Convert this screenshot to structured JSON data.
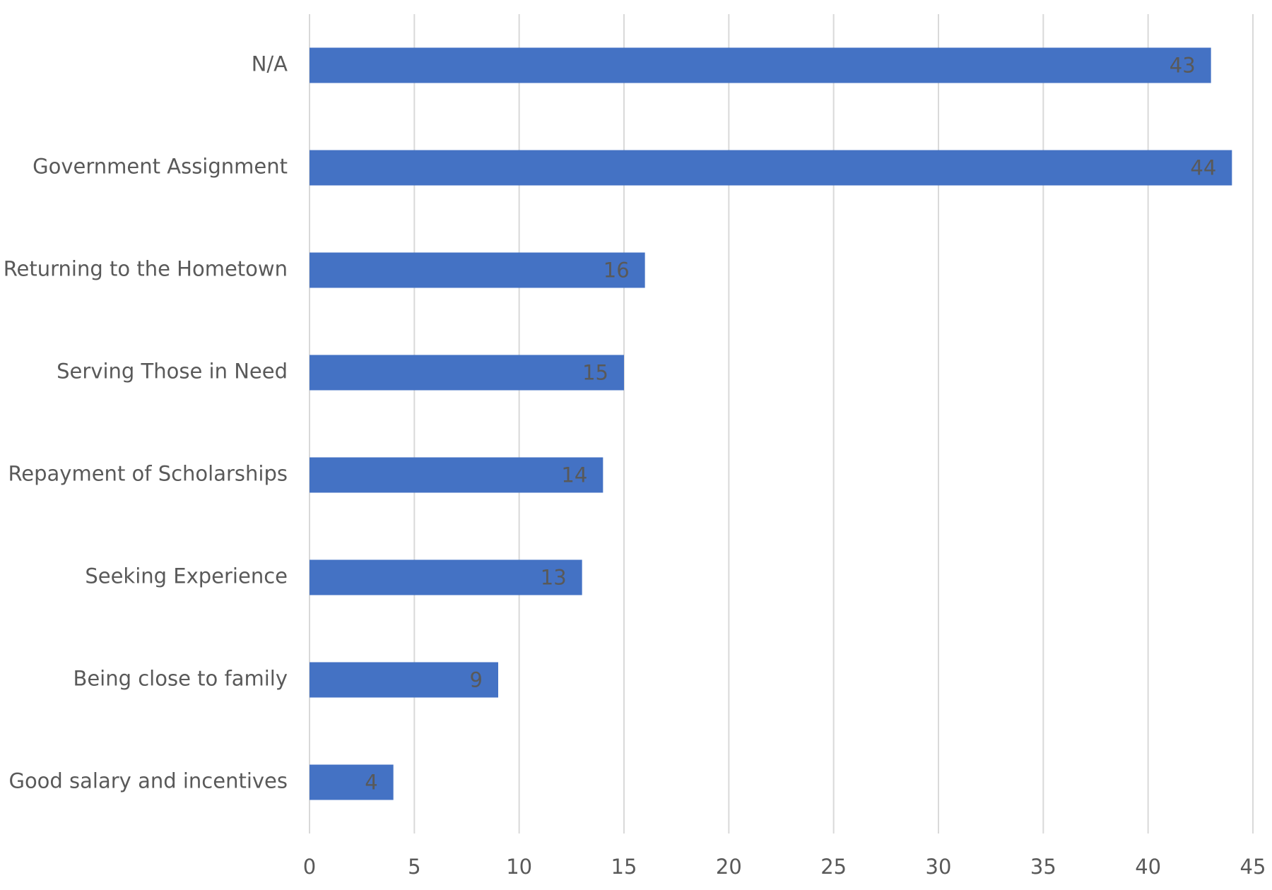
{
  "chart_data": {
    "type": "bar",
    "orientation": "horizontal",
    "categories": [
      "N/A",
      "Government Assignment",
      "Returning to the Hometown",
      "Serving Those in Need",
      "Repayment of Scholarships",
      "Seeking Experience",
      "Being close to family",
      "Good salary and incentives"
    ],
    "values": [
      43,
      44,
      16,
      15,
      14,
      13,
      9,
      4
    ],
    "data_labels": [
      "43",
      "44",
      "16",
      "15",
      "14",
      "13",
      "9",
      "4"
    ],
    "xlim": [
      0,
      45
    ],
    "xticks": [
      0,
      5,
      10,
      15,
      20,
      25,
      30,
      35,
      40,
      45
    ],
    "xtick_labels": [
      "0",
      "5",
      "10",
      "15",
      "20",
      "25",
      "30",
      "35",
      "40",
      "45"
    ],
    "grid": true,
    "legend": "none",
    "colors": {
      "bar": "#4472c4",
      "grid": "#d9d9d9",
      "text": "#595959",
      "data_label": "#595959"
    }
  }
}
